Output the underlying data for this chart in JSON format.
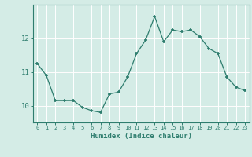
{
  "x": [
    0,
    1,
    2,
    3,
    4,
    5,
    6,
    7,
    8,
    9,
    10,
    11,
    12,
    13,
    14,
    15,
    16,
    17,
    18,
    19,
    20,
    21,
    22,
    23
  ],
  "y": [
    11.25,
    10.9,
    10.15,
    10.15,
    10.15,
    9.95,
    9.85,
    9.8,
    10.35,
    10.4,
    10.85,
    11.55,
    11.95,
    12.65,
    11.9,
    12.25,
    12.2,
    12.25,
    12.05,
    11.7,
    11.55,
    10.85,
    10.55,
    10.45
  ],
  "xlabel": "Humidex (Indice chaleur)",
  "ylim": [
    9.5,
    13.0
  ],
  "xlim": [
    -0.5,
    23.5
  ],
  "yticks": [
    10,
    11,
    12
  ],
  "xticks": [
    0,
    1,
    2,
    3,
    4,
    5,
    6,
    7,
    8,
    9,
    10,
    11,
    12,
    13,
    14,
    15,
    16,
    17,
    18,
    19,
    20,
    21,
    22,
    23
  ],
  "line_color": "#2e7d6e",
  "marker_color": "#2e7d6e",
  "bg_color": "#d4ece6",
  "grid_color": "#ffffff",
  "axis_color": "#2e7d6e",
  "spine_color": "#2e7d6e"
}
